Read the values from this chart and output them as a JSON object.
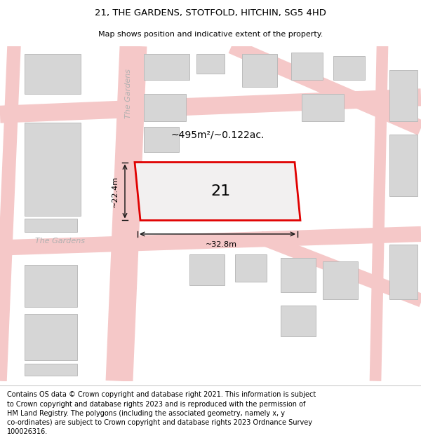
{
  "title": "21, THE GARDENS, STOTFOLD, HITCHIN, SG5 4HD",
  "subtitle": "Map shows position and indicative extent of the property.",
  "footer": "Contains OS data © Crown copyright and database right 2021. This information is subject\nto Crown copyright and database rights 2023 and is reproduced with the permission of\nHM Land Registry. The polygons (including the associated geometry, namely x, y\nco-ordinates) are subject to Crown copyright and database rights 2023 Ordnance Survey\n100026316.",
  "area_label": "~495m²/~0.122ac.",
  "number_label": "21",
  "width_label": "~32.8m",
  "height_label": "~22.4m",
  "street_v_label": "The Gardens",
  "street_h_label": "The Gardens",
  "title_fontsize": 9.5,
  "subtitle_fontsize": 8,
  "footer_fontsize": 7,
  "map_bg": "#f2f0f0",
  "road_color": "#f5c8c8",
  "building_color": "#d6d6d6",
  "building_edge": "#bbbbbb",
  "highlight_color": "#e00000",
  "arrow_color": "#111111"
}
